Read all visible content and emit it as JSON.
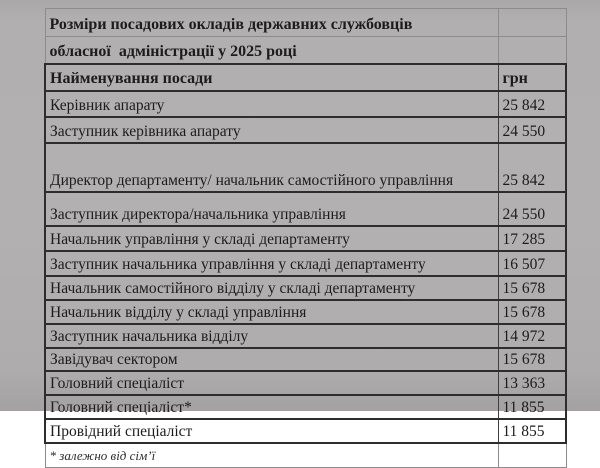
{
  "colors": {
    "page_background": "#b1afaf",
    "border_dark": "#2e2c2c",
    "border_light": "#8d8b8b",
    "text": "#1d1b1b"
  },
  "table": {
    "title_lines": [
      "Розміри посадових окладів державних службовців",
      "обласної  адміністрації у 2025 році"
    ],
    "header": {
      "position": "Найменування посади",
      "amount": "грн"
    },
    "rows": [
      {
        "position": "Керівник апарату",
        "amount": "25 842"
      },
      {
        "position": "Заступник керівника апарату",
        "amount": "24 550"
      },
      {
        "position": "Директор департаменту/ начальник самостійного управління",
        "amount": "25 842"
      },
      {
        "position": "Заступник директора/начальника управління",
        "amount": "24 550"
      },
      {
        "position": "Начальник управління у складі департаменту",
        "amount": "17 285"
      },
      {
        "position": "Заступник начальника управління у складі департаменту",
        "amount": "16 507"
      },
      {
        "position": "Начальник самостійного відділу у складі департаменту",
        "amount": "15 678"
      },
      {
        "position": "Начальник відділу у складі управління",
        "amount": "15 678"
      },
      {
        "position": "Заступник начальника відділу",
        "amount": "14 972"
      },
      {
        "position": "Завідувач сектором",
        "amount": "15 678"
      },
      {
        "position": "Головний спеціаліст",
        "amount": "13 363"
      },
      {
        "position": "Головний спеціаліст*",
        "amount": "11 855"
      },
      {
        "position": "Провідний спеціаліст",
        "amount": "11 855"
      }
    ],
    "footnote": "* залежно від сім’ї"
  }
}
